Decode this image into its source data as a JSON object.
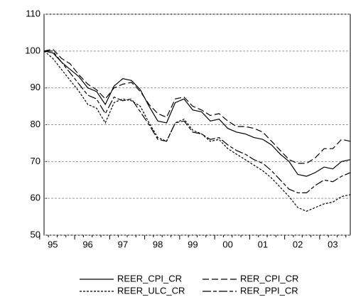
{
  "chart_data": {
    "type": "line",
    "categories": [
      "95",
      null,
      null,
      null,
      "96",
      null,
      null,
      null,
      "97",
      null,
      null,
      null,
      "98",
      null,
      null,
      null,
      "99",
      null,
      null,
      null,
      "00",
      null,
      null,
      null,
      "01",
      null,
      null,
      null,
      "02",
      null,
      null,
      null,
      "03",
      null,
      null,
      null
    ],
    "ylim": [
      50,
      110
    ],
    "yticks": [
      50,
      60,
      70,
      80,
      90,
      100,
      110
    ],
    "grid": true,
    "series": [
      {
        "name": "REER_CPI_CR",
        "color": "#000000",
        "dash": "none",
        "values": [
          100,
          99.5,
          97,
          95,
          93,
          90,
          89,
          85.5,
          90.5,
          92.5,
          92,
          89.5,
          85,
          81,
          80.5,
          86,
          87,
          84,
          83.5,
          81,
          81.5,
          79,
          78,
          77.5,
          76.5,
          76,
          74.5,
          72,
          70,
          66.5,
          66,
          67,
          68.5,
          68,
          70,
          70.5
        ]
      },
      {
        "name": "RER_CPI_CR",
        "color": "#000000",
        "dash": "9,4",
        "values": [
          100,
          100.5,
          98,
          96.5,
          93.5,
          91,
          89.5,
          87,
          90,
          91,
          91.5,
          89,
          85.5,
          83,
          82,
          87,
          87.5,
          85,
          84,
          82.5,
          83,
          81,
          79.5,
          79.5,
          79,
          78,
          75.5,
          73,
          70.5,
          69.5,
          69.5,
          71,
          73.5,
          73.5,
          76,
          75.5
        ]
      },
      {
        "name": "REER_ULC_CR",
        "color": "#000000",
        "dash": "3,2",
        "values": [
          100,
          98,
          95,
          92,
          89,
          85.5,
          84.5,
          80.5,
          86,
          87,
          86.5,
          85,
          80.5,
          76.5,
          75.5,
          80.5,
          81.5,
          78.5,
          77.5,
          75.5,
          76,
          73.5,
          72,
          70.5,
          69,
          67.5,
          65.5,
          63,
          60.5,
          57.5,
          56.5,
          57.5,
          58.5,
          59,
          60.5,
          61
        ]
      },
      {
        "name": "RER_PPI_CR",
        "color": "#000000",
        "dash": "12,3,5,3",
        "values": [
          100,
          100,
          97,
          94,
          91,
          88,
          87,
          83,
          87.5,
          86.5,
          87,
          83.5,
          80,
          76,
          75.5,
          80.5,
          81,
          78,
          77.5,
          76,
          76.5,
          74.5,
          73,
          72,
          70.5,
          69.5,
          67.5,
          65,
          62.5,
          61.5,
          61.5,
          63.5,
          65,
          64.5,
          66,
          67
        ]
      }
    ]
  }
}
